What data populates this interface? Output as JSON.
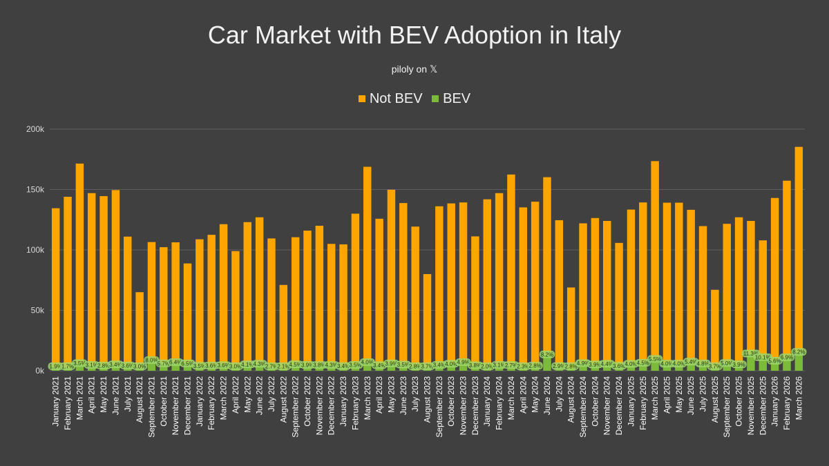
{
  "chart_data": {
    "type": "bar",
    "stacked": true,
    "title": "Car Market with BEV Adoption in Italy",
    "subtitle": "piloly on 𝕏",
    "xlabel": "",
    "ylabel": "",
    "ylim": [
      0,
      200000
    ],
    "yticks": [
      "0k",
      "50k",
      "100k",
      "150k",
      "200k"
    ],
    "ytick_values": [
      0,
      50000,
      100000,
      150000,
      200000
    ],
    "grid": true,
    "legend_position": "top-center",
    "colors": {
      "not_bev": "#FFA500",
      "bev": "#7CBA3A",
      "background": "#404040",
      "grid": "#5f5f5f"
    },
    "categories": [
      "January 2021",
      "February 2021",
      "March 2021",
      "April 2021",
      "May 2021",
      "June 2021",
      "July 2021",
      "August 2021",
      "September 2021",
      "October 2021",
      "November 2021",
      "December 2021",
      "January 2022",
      "February 2022",
      "March 2022",
      "April 2022",
      "May 2022",
      "June 2022",
      "July 2022",
      "August 2022",
      "September 2022",
      "October 2022",
      "November 2022",
      "December 2022",
      "January 2023",
      "February 2023",
      "March 2023",
      "April 2023",
      "May 2023",
      "June 2023",
      "July 2023",
      "August 2023",
      "September 2023",
      "October 2023",
      "November 2023",
      "December 2023",
      "January 2024",
      "February 2024",
      "March 2024",
      "April 2024",
      "May 2024",
      "June 2024",
      "July 2024",
      "August 2024",
      "September 2024",
      "October 2024",
      "November 2024",
      "December 2024",
      "January 2025",
      "February 2025",
      "March 2025",
      "April 2025",
      "May 2025",
      "June 2025",
      "July 2025",
      "August 2025",
      "September 2025",
      "October 2025",
      "November 2025",
      "December 2025",
      "January 2026",
      "February 2026",
      "March 2026"
    ],
    "series": [
      {
        "name": "Not BEV",
        "values": [
          132000,
          141500,
          165500,
          142500,
          140500,
          144500,
          107000,
          63000,
          98000,
          96500,
          99500,
          83000,
          105000,
          108500,
          117000,
          96000,
          118000,
          121500,
          106500,
          69500,
          105500,
          111500,
          115500,
          100500,
          101000,
          125500,
          162000,
          121500,
          144000,
          134000,
          116000,
          77000,
          131500,
          133000,
          132500,
          107000,
          139000,
          142500,
          158000,
          132000,
          136000,
          147000,
          121000,
          67000,
          116000,
          121500,
          118500,
          102000,
          128000,
          133000,
          164000,
          133500,
          133500,
          126000,
          114000,
          64500,
          115500,
          122000,
          110000,
          97000,
          135000,
          146500,
          170000
        ]
      },
      {
        "name": "BEV",
        "values": [
          2500,
          2500,
          6000,
          4500,
          4000,
          5000,
          4000,
          2000,
          8500,
          5800,
          6800,
          5800,
          3800,
          4000,
          4300,
          3000,
          5000,
          5500,
          3000,
          1500,
          5000,
          4500,
          4500,
          4500,
          3600,
          4500,
          6800,
          4300,
          5800,
          4800,
          3300,
          3000,
          4600,
          5500,
          6800,
          4200,
          2900,
          4500,
          4400,
          3200,
          3900,
          13200,
          3600,
          1900,
          6000,
          4900,
          5500,
          3800,
          5400,
          6300,
          9500,
          5600,
          5600,
          7200,
          5700,
          2500,
          6100,
          5000,
          14000,
          10900,
          8000,
          10800,
          15300
        ]
      }
    ],
    "data_labels": [
      "1.9%",
      "1.7%",
      "3.5%",
      "3.1%",
      "2.8%",
      "3.4%",
      "3.6%",
      "3.0%",
      "8.0%",
      "5.7%",
      "6.4%",
      "6.5%",
      "3.5%",
      "3.6%",
      "3.6%",
      "3.0%",
      "4.1%",
      "4.3%",
      "2.7%",
      "2.1%",
      "4.5%",
      "3.9%",
      "3.8%",
      "4.3%",
      "3.4%",
      "3.5%",
      "4.0%",
      "3.4%",
      "3.9%",
      "3.5%",
      "2.8%",
      "3.7%",
      "3.4%",
      "4.0%",
      "4.9%",
      "3.8%",
      "2.0%",
      "3.1%",
      "2.7%",
      "2.3%",
      "2.8%",
      "8.2%",
      "2.9%",
      "2.8%",
      "4.9%",
      "3.9%",
      "4.4%",
      "3.6%",
      "4.0%",
      "4.5%",
      "5.5%",
      "4.0%",
      "4.0%",
      "5.4%",
      "4.8%",
      "3.7%",
      "5.0%",
      "3.9%",
      "11.3%",
      "10.1%",
      "5.6%",
      "6.9%",
      "8.2%"
    ]
  }
}
